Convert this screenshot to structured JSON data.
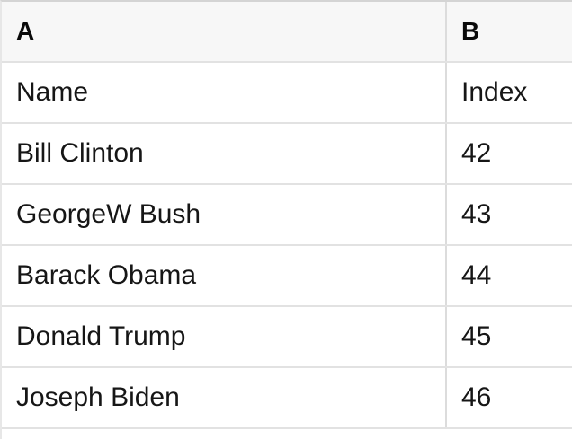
{
  "table": {
    "header": [
      "A",
      "B"
    ],
    "rows": [
      [
        "Name",
        "Index"
      ],
      [
        "Bill Clinton",
        "42"
      ],
      [
        "GeorgeW Bush",
        "43"
      ],
      [
        "Barack Obama",
        "44"
      ],
      [
        "Donald Trump",
        "45"
      ],
      [
        "Joseph Biden",
        "46"
      ]
    ]
  },
  "colors": {
    "header_bg": "#f7f7f7",
    "row_border": "#e2e2e2",
    "top_border": "#d4d4d4",
    "col_divider": "#dcdcdc",
    "left_border": "#e7e7e7",
    "cell_text": "#161616",
    "header_text": "#0a0a0a",
    "cell_bg": "#ffffff"
  }
}
